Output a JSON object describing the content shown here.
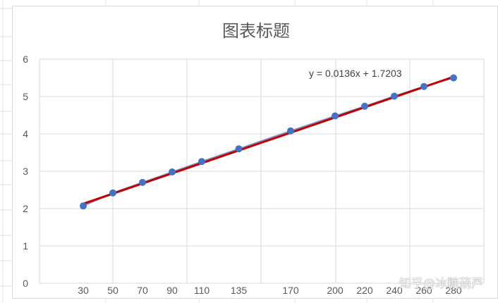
{
  "chart_data": {
    "type": "scatter",
    "title": "图表标题",
    "xlabel": "",
    "ylabel": "",
    "ylim": [
      0,
      6
    ],
    "y_ticks": [
      0,
      1,
      2,
      3,
      4,
      5,
      6
    ],
    "x_tick_labels": [
      "30",
      "50",
      "70",
      "90",
      "110",
      "135",
      "170",
      "200",
      "220",
      "240",
      "260",
      "280"
    ],
    "grid": true,
    "points": [
      {
        "x": 30,
        "y": 2.07
      },
      {
        "x": 50,
        "y": 2.42
      },
      {
        "x": 70,
        "y": 2.7
      },
      {
        "x": 90,
        "y": 2.98
      },
      {
        "x": 110,
        "y": 3.26
      },
      {
        "x": 135,
        "y": 3.6
      },
      {
        "x": 170,
        "y": 4.08
      },
      {
        "x": 200,
        "y": 4.48
      },
      {
        "x": 220,
        "y": 4.74
      },
      {
        "x": 240,
        "y": 5.01
      },
      {
        "x": 260,
        "y": 5.27
      },
      {
        "x": 280,
        "y": 5.5
      }
    ],
    "trendline": {
      "type": "linear",
      "slope": 0.0136,
      "intercept": 1.7203,
      "equation_label": "y = 0.0136x + 1.7203",
      "color": "#c00000"
    },
    "series_color": "#4472c4",
    "connector_color": "#7f90c6"
  },
  "watermark": "知乎@冰糖葫芦"
}
